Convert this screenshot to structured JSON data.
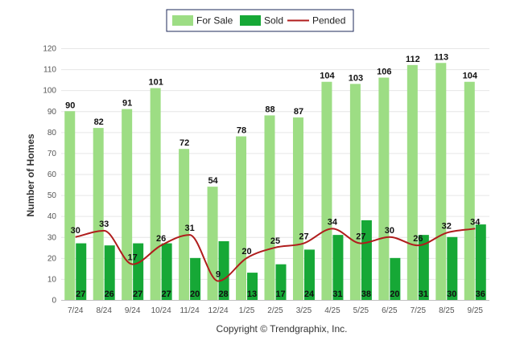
{
  "chart_data": {
    "type": "bar",
    "categories": [
      "7/24",
      "8/24",
      "9/24",
      "10/24",
      "11/24",
      "12/24",
      "1/25",
      "2/25",
      "3/25",
      "4/25",
      "5/25",
      "6/25",
      "7/25",
      "8/25",
      "9/25"
    ],
    "series": [
      {
        "name": "For Sale",
        "kind": "bar",
        "color": "#9ddd84",
        "values": [
          90,
          82,
          91,
          101,
          72,
          54,
          78,
          88,
          87,
          104,
          103,
          106,
          112,
          113,
          104
        ]
      },
      {
        "name": "Sold",
        "kind": "bar",
        "color": "#16a836",
        "values": [
          27,
          26,
          27,
          27,
          20,
          28,
          13,
          17,
          24,
          31,
          38,
          20,
          31,
          30,
          36
        ]
      },
      {
        "name": "Pended",
        "kind": "line",
        "color": "#b01c1c",
        "values": [
          30,
          33,
          17,
          26,
          31,
          9,
          20,
          25,
          27,
          34,
          27,
          30,
          26,
          32,
          34
        ]
      }
    ],
    "title": "",
    "xlabel": "",
    "ylabel": "Number of Homes",
    "ylim": [
      0,
      120
    ],
    "yticks": [
      0,
      10,
      20,
      30,
      40,
      50,
      60,
      70,
      80,
      90,
      100,
      110,
      120
    ],
    "grid": true,
    "legend_position": "top-center",
    "credit": "Copyright © Trendgraphix, Inc."
  }
}
